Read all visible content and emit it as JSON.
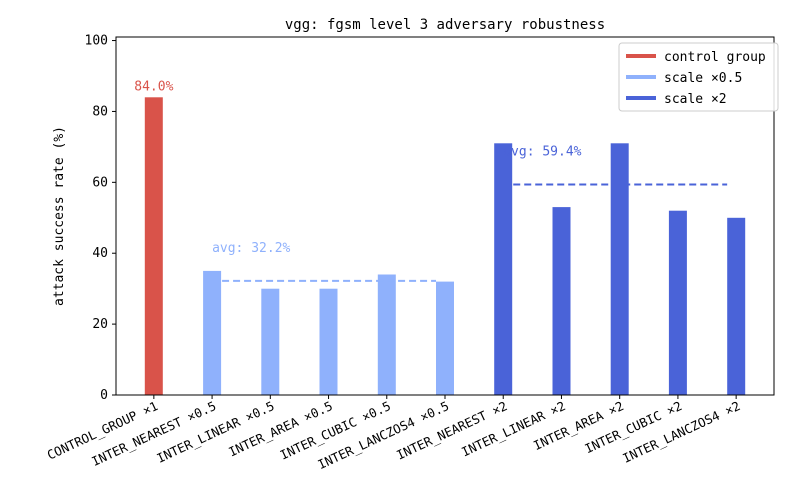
{
  "chart_data": {
    "type": "bar",
    "title": "vgg: fgsm level 3 adversary robustness",
    "xlabel": "",
    "ylabel": "attack success rate (%)",
    "ylim": [
      0,
      101
    ],
    "yticks": [
      0,
      20,
      40,
      60,
      80,
      100
    ],
    "grid": false,
    "legend_position": "top-right",
    "categories": [
      "CONTROL_GROUP ×1",
      "INTER_NEAREST ×0.5",
      "INTER_LINEAR ×0.5",
      "INTER_AREA ×0.5",
      "INTER_CUBIC ×0.5",
      "INTER_LANCZOS4 ×0.5",
      "INTER_NEAREST ×2",
      "INTER_LINEAR ×2",
      "INTER_AREA ×2",
      "INTER_CUBIC ×2",
      "INTER_LANCZOS4 ×2"
    ],
    "values": [
      84.0,
      35,
      30,
      30,
      34,
      32,
      71,
      53,
      71,
      52,
      50
    ],
    "groups": [
      {
        "name": "control group",
        "color": "#d9534a",
        "category_indices": [
          0
        ]
      },
      {
        "name": "scale ×0.5",
        "color": "#8fb1fc",
        "category_indices": [
          1,
          2,
          3,
          4,
          5
        ]
      },
      {
        "name": "scale ×2",
        "color": "#4a63d8",
        "category_indices": [
          6,
          7,
          8,
          9,
          10
        ]
      }
    ],
    "annotations": [
      {
        "text": "84.0%",
        "category_index": 0,
        "value": 84.0,
        "color": "#d9534a"
      },
      {
        "text": "avg: 32.2%",
        "value": 32.2,
        "from_index": 1,
        "to_index": 5,
        "color": "#8fb1fc"
      },
      {
        "text": "avg: 59.4%",
        "value": 59.4,
        "from_index": 6,
        "to_index": 10,
        "color": "#4a63d8"
      }
    ]
  }
}
